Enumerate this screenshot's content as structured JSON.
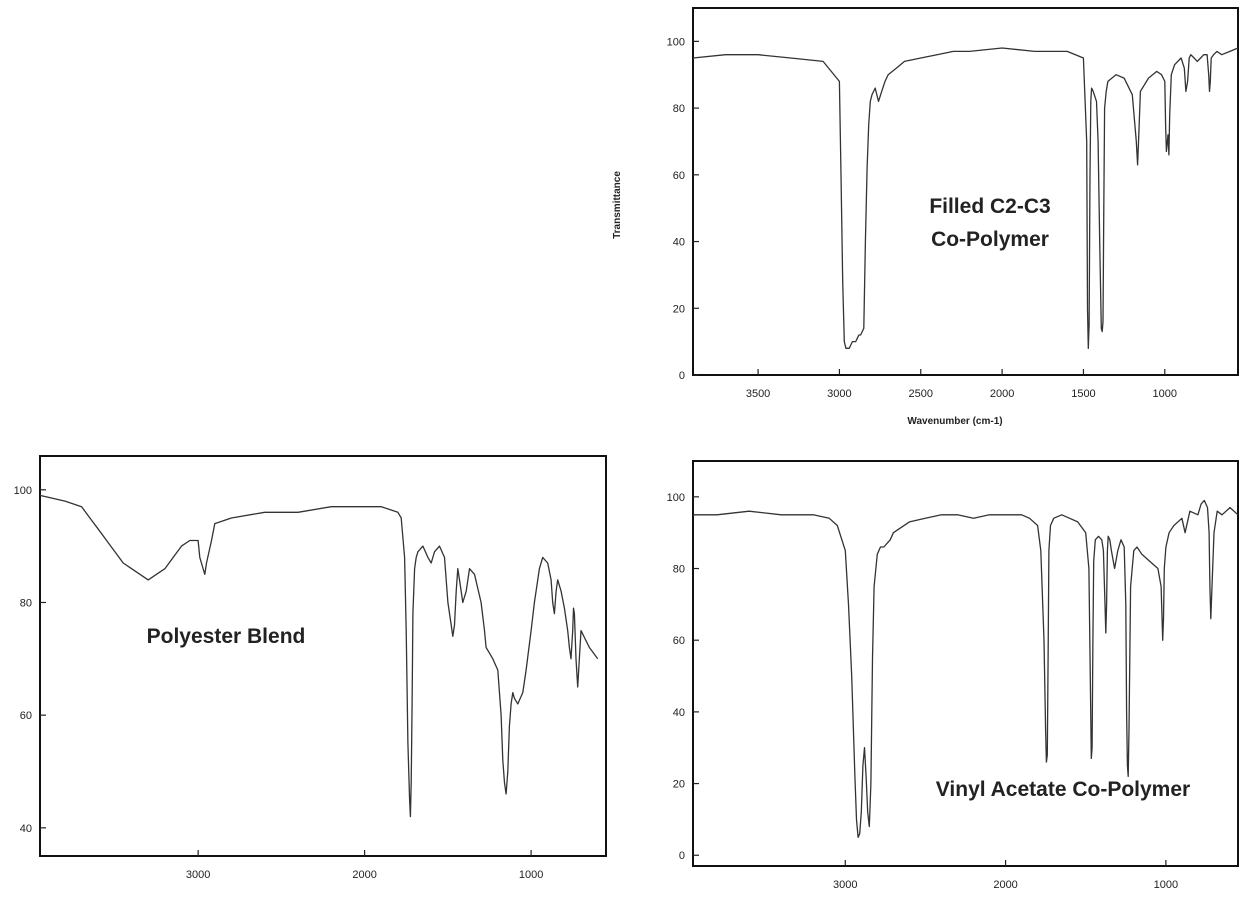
{
  "chart_data": [
    {
      "type": "line",
      "title": "",
      "annotation": [
        "Filled C2-C3",
        "Co-Polymer"
      ],
      "xlabel": "Wavenumber (cm-1)",
      "ylabel": "Transmittance",
      "xlim": [
        3900,
        550
      ],
      "ylim": [
        0,
        110
      ],
      "xticks": [
        3500,
        3000,
        2500,
        2000,
        1500,
        1000
      ],
      "yticks": [
        0,
        20,
        40,
        60,
        80,
        100
      ],
      "series": [
        {
          "x": [
            3900,
            3700,
            3500,
            3300,
            3100,
            3000,
            2990,
            2980,
            2970,
            2960,
            2950,
            2940,
            2930,
            2920,
            2910,
            2900,
            2890,
            2880,
            2870,
            2860,
            2850,
            2840,
            2830,
            2820,
            2810,
            2800,
            2780,
            2760,
            2740,
            2720,
            2700,
            2650,
            2600,
            2500,
            2400,
            2300,
            2200,
            2000,
            1800,
            1600,
            1500,
            1480,
            1475,
            1470,
            1465,
            1460,
            1455,
            1450,
            1440,
            1420,
            1410,
            1400,
            1390,
            1385,
            1380,
            1375,
            1370,
            1360,
            1350,
            1300,
            1250,
            1200,
            1175,
            1167,
            1160,
            1150,
            1100,
            1050,
            1020,
            1000,
            995,
            990,
            980,
            975,
            970,
            960,
            940,
            900,
            880,
            870,
            860,
            850,
            840,
            820,
            800,
            780,
            760,
            740,
            730,
            725,
            720,
            715,
            700,
            680,
            650,
            600,
            550
          ],
          "y": [
            95,
            96,
            96,
            95,
            94,
            88,
            60,
            28,
            10,
            8,
            8,
            8,
            9,
            10,
            10,
            10,
            11,
            12,
            12,
            13,
            14,
            40,
            62,
            75,
            82,
            84,
            86,
            82,
            85,
            88,
            90,
            92,
            94,
            95,
            96,
            97,
            97,
            98,
            97,
            97,
            95,
            70,
            20,
            8,
            15,
            60,
            82,
            86,
            85,
            82,
            70,
            40,
            14,
            13,
            16,
            50,
            80,
            85,
            88,
            90,
            89,
            84,
            70,
            63,
            72,
            85,
            89,
            91,
            90,
            88,
            75,
            67,
            72,
            66,
            78,
            90,
            93,
            95,
            92,
            85,
            88,
            95,
            96,
            95,
            94,
            95,
            96,
            96,
            90,
            85,
            88,
            95,
            96,
            97,
            96,
            97,
            98
          ]
        }
      ]
    },
    {
      "type": "line",
      "title": "",
      "annotation": [
        "Polyester Blend"
      ],
      "xlabel": "",
      "ylabel": "",
      "xlim": [
        3950,
        550
      ],
      "ylim": [
        35,
        106
      ],
      "xticks": [
        3000,
        2000,
        1000
      ],
      "yticks": [
        40,
        60,
        80,
        100
      ],
      "series": [
        {
          "x": [
            3950,
            3800,
            3700,
            3650,
            3600,
            3550,
            3500,
            3450,
            3400,
            3350,
            3300,
            3250,
            3200,
            3150,
            3100,
            3050,
            3000,
            2990,
            2970,
            2960,
            2950,
            2920,
            2900,
            2800,
            2600,
            2400,
            2200,
            2000,
            1900,
            1800,
            1780,
            1760,
            1750,
            1740,
            1730,
            1725,
            1720,
            1715,
            1710,
            1700,
            1690,
            1680,
            1650,
            1620,
            1600,
            1580,
            1550,
            1520,
            1500,
            1480,
            1470,
            1460,
            1450,
            1440,
            1430,
            1410,
            1390,
            1370,
            1340,
            1300,
            1280,
            1270,
            1250,
            1230,
            1200,
            1180,
            1170,
            1160,
            1150,
            1140,
            1130,
            1120,
            1110,
            1100,
            1080,
            1050,
            1030,
            1000,
            980,
            950,
            930,
            900,
            880,
            870,
            860,
            850,
            840,
            820,
            800,
            780,
            770,
            760,
            750,
            745,
            740,
            730,
            720,
            700,
            650,
            600
          ],
          "y": [
            99,
            98,
            97,
            95,
            93,
            91,
            89,
            87,
            86,
            85,
            84,
            85,
            86,
            88,
            90,
            91,
            91,
            88,
            86,
            85,
            87,
            91,
            94,
            95,
            96,
            96,
            97,
            97,
            97,
            96,
            95,
            88,
            75,
            55,
            45,
            42,
            48,
            62,
            78,
            86,
            88,
            89,
            90,
            88,
            87,
            89,
            90,
            88,
            80,
            76,
            74,
            76,
            82,
            86,
            84,
            80,
            82,
            86,
            85,
            80,
            75,
            72,
            71,
            70,
            68,
            60,
            52,
            48,
            46,
            50,
            58,
            62,
            64,
            63,
            62,
            64,
            68,
            75,
            80,
            86,
            88,
            87,
            84,
            80,
            78,
            82,
            84,
            82,
            79,
            75,
            72,
            70,
            75,
            79,
            78,
            70,
            65,
            75,
            72,
            70
          ]
        }
      ]
    },
    {
      "type": "line",
      "title": "",
      "annotation": [
        "Vinyl Acetate Co-Polymer"
      ],
      "xlabel": "",
      "ylabel": "",
      "xlim": [
        3950,
        550
      ],
      "ylim": [
        -3,
        110
      ],
      "xticks": [
        3000,
        2000,
        1000
      ],
      "yticks": [
        0,
        20,
        40,
        60,
        80,
        100
      ],
      "series": [
        {
          "x": [
            3950,
            3800,
            3600,
            3400,
            3200,
            3100,
            3050,
            3000,
            2980,
            2960,
            2940,
            2930,
            2920,
            2910,
            2900,
            2890,
            2880,
            2870,
            2860,
            2850,
            2840,
            2830,
            2820,
            2800,
            2780,
            2760,
            2740,
            2720,
            2700,
            2600,
            2500,
            2400,
            2300,
            2200,
            2100,
            2000,
            1900,
            1850,
            1800,
            1780,
            1760,
            1750,
            1745,
            1740,
            1735,
            1730,
            1720,
            1700,
            1650,
            1600,
            1550,
            1500,
            1480,
            1470,
            1465,
            1460,
            1455,
            1450,
            1440,
            1420,
            1400,
            1390,
            1380,
            1375,
            1370,
            1365,
            1360,
            1350,
            1340,
            1320,
            1300,
            1280,
            1260,
            1250,
            1245,
            1240,
            1235,
            1230,
            1220,
            1200,
            1180,
            1150,
            1100,
            1050,
            1030,
            1020,
            1015,
            1010,
            1000,
            980,
            950,
            900,
            880,
            850,
            800,
            780,
            760,
            740,
            730,
            725,
            720,
            715,
            700,
            680,
            650,
            600,
            550
          ],
          "y": [
            95,
            95,
            96,
            95,
            95,
            94,
            92,
            85,
            70,
            50,
            22,
            10,
            5,
            6,
            12,
            25,
            30,
            22,
            12,
            8,
            20,
            55,
            75,
            84,
            86,
            86,
            87,
            88,
            90,
            93,
            94,
            95,
            95,
            94,
            95,
            95,
            95,
            94,
            92,
            85,
            60,
            35,
            26,
            28,
            55,
            85,
            92,
            94,
            95,
            94,
            93,
            90,
            80,
            45,
            27,
            30,
            60,
            82,
            88,
            89,
            88,
            85,
            70,
            62,
            70,
            85,
            89,
            88,
            85,
            80,
            85,
            88,
            86,
            70,
            40,
            25,
            22,
            35,
            75,
            85,
            86,
            84,
            82,
            80,
            75,
            60,
            66,
            80,
            86,
            90,
            92,
            94,
            90,
            96,
            95,
            98,
            99,
            97,
            90,
            75,
            66,
            72,
            90,
            96,
            95,
            97,
            95
          ]
        }
      ]
    }
  ]
}
